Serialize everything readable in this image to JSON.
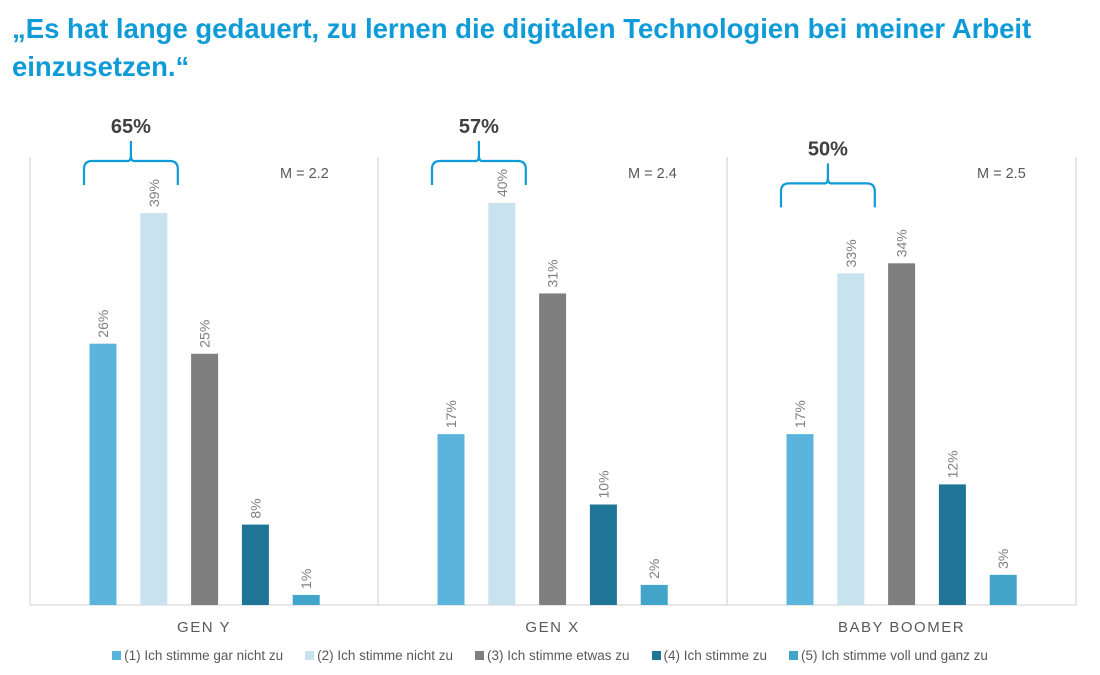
{
  "title": "„Es hat lange gedauert, zu lernen die digitalen Technologien bei meiner Arbeit einzusetzen.“",
  "chart_data": {
    "type": "bar",
    "title": "„Es hat lange gedauert, zu lernen die digitalen Technologien bei meiner Arbeit einzusetzen.“",
    "xlabel": "",
    "ylabel": "",
    "ylim": [
      0,
      44
    ],
    "grid": false,
    "legend_position": "bottom",
    "categories": [
      "GEN Y",
      "GEN X",
      "BABY BOOMER"
    ],
    "series": [
      {
        "name": "(1) Ich stimme gar nicht zu",
        "color": "#5ab4dc",
        "values": [
          26,
          17,
          17
        ],
        "labels": [
          "26%",
          "17%",
          "17%"
        ]
      },
      {
        "name": "(2) Ich stimme nicht zu",
        "color": "#c8e3ee",
        "values": [
          39,
          40,
          33
        ],
        "labels": [
          "39%",
          "40%",
          "33%"
        ]
      },
      {
        "name": "(3) Ich stimme etwas zu",
        "color": "#7f7f7f",
        "values": [
          25,
          31,
          34
        ],
        "labels": [
          "25%",
          "31%",
          "34%"
        ]
      },
      {
        "name": "(4) Ich stimme zu",
        "color": "#1f7596",
        "values": [
          8,
          10,
          12
        ],
        "labels": [
          "8%",
          "10%",
          "12%"
        ]
      },
      {
        "name": "(5) Ich stimme voll und ganz zu",
        "color": "#41a4c8",
        "values": [
          1,
          2,
          3
        ],
        "labels": [
          "1%",
          "2%",
          "3%"
        ]
      }
    ],
    "annotations": [
      {
        "group": "GEN Y",
        "mean_label": "M = 2.2",
        "bracket_label": "65%",
        "bracket_value": 65,
        "bracket_series": [
          0,
          1
        ]
      },
      {
        "group": "GEN X",
        "mean_label": "M = 2.4",
        "bracket_label": "57%",
        "bracket_value": 57,
        "bracket_series": [
          0,
          1
        ]
      },
      {
        "group": "BABY BOOMER",
        "mean_label": "M = 2.5",
        "bracket_label": "50%",
        "bracket_value": 50,
        "bracket_series": [
          0,
          1
        ]
      }
    ]
  },
  "colors": {
    "title": "#0f9bd7",
    "bracket": "#0f9bd7",
    "axis": "#d9d9d9",
    "label_text": "#7f7f7f",
    "dark_text": "#404040"
  }
}
